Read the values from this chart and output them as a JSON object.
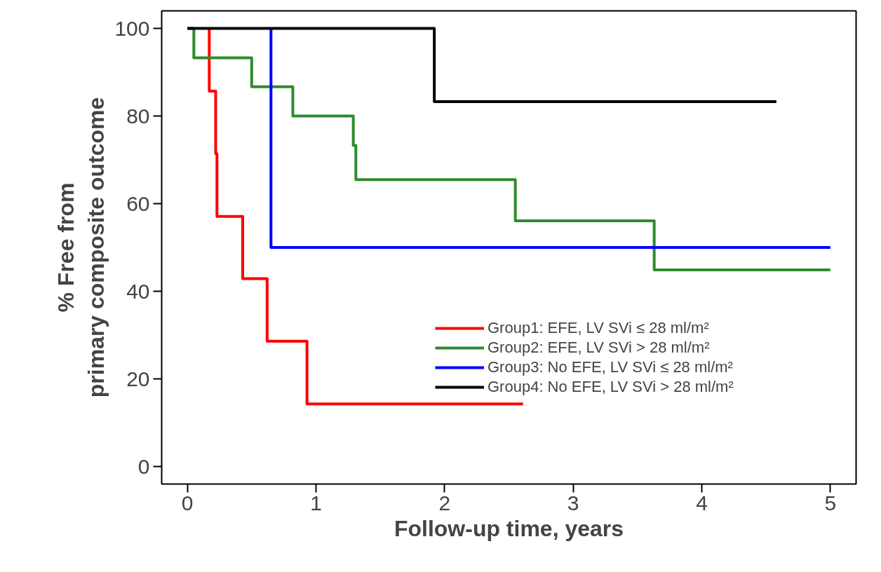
{
  "chart_data": {
    "type": "step",
    "xlabel": "Follow-up time, years",
    "ylabel": "% Free from\nprimary composite outcome",
    "xlim": [
      -0.2,
      5.2
    ],
    "ylim": [
      -4,
      104
    ],
    "xticks": [
      0,
      1,
      2,
      3,
      4,
      5
    ],
    "yticks": [
      0,
      20,
      40,
      60,
      80,
      100
    ],
    "grid": false,
    "legend": "right",
    "line_style": "solid",
    "marker": "none",
    "series": [
      {
        "name": "Group1: EFE, LV SVi ≤ 28 ml/m²",
        "color": "#ff0000",
        "x": [
          0.17,
          0.17,
          0.22,
          0.23,
          0.43,
          0.62,
          0.93,
          2.61
        ],
        "values": [
          100,
          85.7,
          71.4,
          57.1,
          42.9,
          28.6,
          14.3,
          14.3
        ]
      },
      {
        "name": "Group2: EFE, LV SVi > 28 ml/m²",
        "color": "#2e8b2e",
        "x": [
          0,
          0.05,
          0.5,
          0.82,
          1.29,
          1.31,
          2.55,
          3.63,
          5
        ],
        "values": [
          100,
          93.3,
          86.7,
          80,
          73.3,
          65.5,
          56.1,
          44.9,
          44.9
        ]
      },
      {
        "name": "Group3: No EFE, LV SVi ≤ 28 ml/m²",
        "color": "#0000ff",
        "x": [
          0.65,
          0.65,
          5
        ],
        "values": [
          100,
          50,
          50
        ]
      },
      {
        "name": "Group4: No EFE, LV SVi > 28 ml/m²",
        "color": "#000000",
        "x": [
          0,
          1.92,
          4.58
        ],
        "values": [
          100,
          83.3,
          83.3
        ]
      }
    ]
  }
}
